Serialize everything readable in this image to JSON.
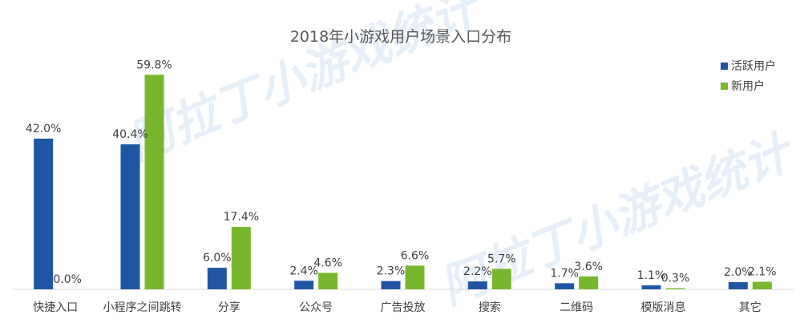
{
  "chart_data": {
    "type": "bar",
    "title": "2018年小游戏用户场景入口分布",
    "categories": [
      "快捷入口",
      "小程序之间跳转",
      "分享",
      "公众号",
      "广告投放",
      "搜索",
      "二维码",
      "模版消息",
      "其它"
    ],
    "series": [
      {
        "name": "活跃用户",
        "values": [
          42.0,
          40.4,
          6.0,
          2.4,
          2.3,
          2.2,
          1.7,
          1.1,
          2.0
        ],
        "labels": [
          "42.0%",
          "40.4%",
          "6.0%",
          "2.4%",
          "2.3%",
          "2.2%",
          "1.7%",
          "1.1%",
          "2.0%"
        ],
        "color": "#1F56A4"
      },
      {
        "name": "新用户",
        "values": [
          0.0,
          59.8,
          17.4,
          4.6,
          6.6,
          5.7,
          3.6,
          0.3,
          2.1
        ],
        "labels": [
          "0.0%",
          "59.8%",
          "17.4%",
          "4.6%",
          "6.6%",
          "5.7%",
          "3.6%",
          "0.3%",
          "2.1%"
        ],
        "color": "#77B72E"
      }
    ],
    "ylim": [
      0,
      65
    ],
    "grid": false,
    "legend_position": "top-right",
    "watermark": "阿拉丁小游戏统计"
  }
}
